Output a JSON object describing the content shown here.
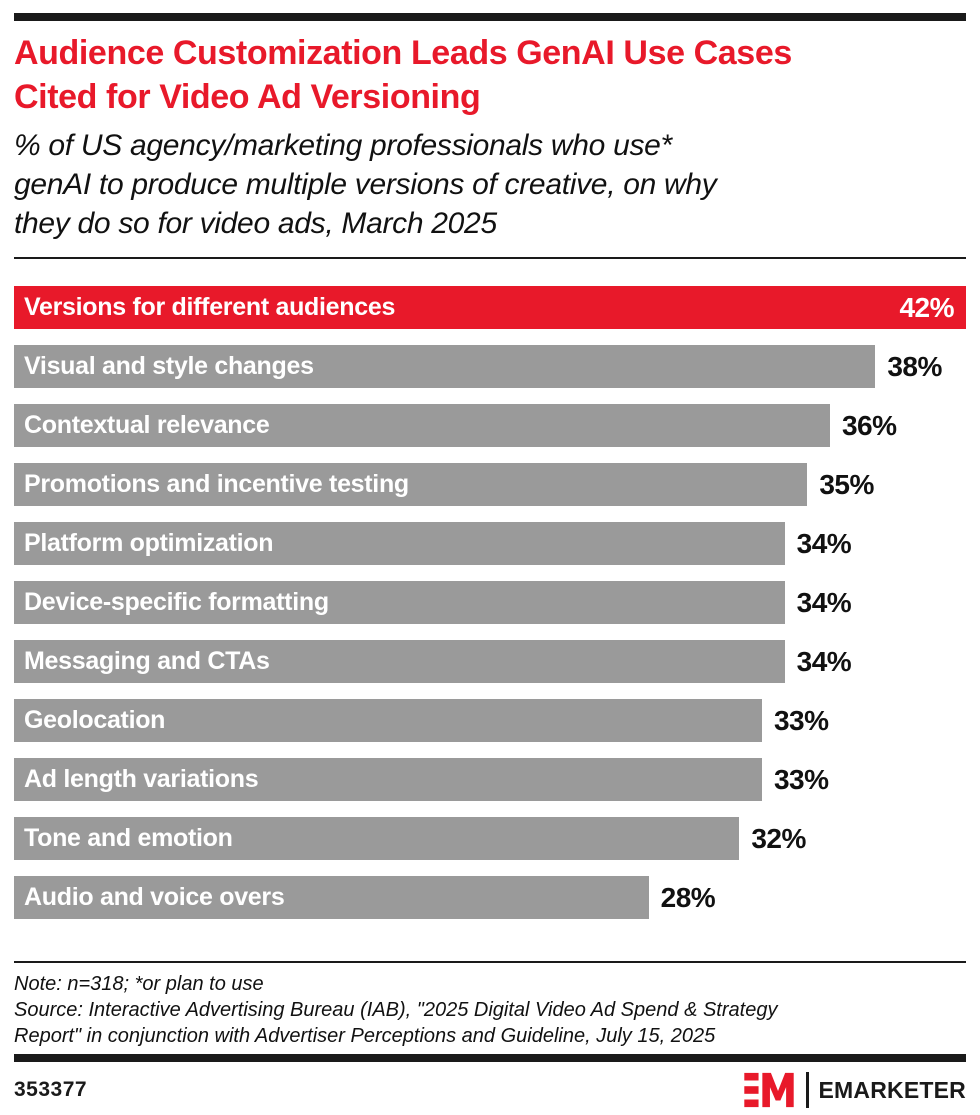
{
  "colors": {
    "accent_red": "#e8192a",
    "bar_gray": "#9a9a9a",
    "ink": "#1a1a1a"
  },
  "header": {
    "title_lines": [
      "Audience Customization Leads GenAI Use Cases",
      "Cited for Video Ad Versioning"
    ],
    "subtitle_lines": [
      "% of US agency/marketing professionals who use*",
      "genAI to produce multiple versions of creative, on why",
      "they do so for video ads, March 2025"
    ]
  },
  "chart_data": {
    "type": "bar",
    "orientation": "horizontal",
    "title": "Audience Customization Leads GenAI Use Cases Cited for Video Ad Versioning",
    "subtitle": "% of US agency/marketing professionals who use* genAI to produce multiple versions of creative, on why they do so for video ads, March 2025",
    "categories": [
      "Versions for different audiences",
      "Visual and style changes",
      "Contextual relevance",
      "Promotions and incentive testing",
      "Platform optimization",
      "Device-specific formatting",
      "Messaging and CTAs",
      "Geolocation",
      "Ad length variations",
      "Tone and emotion",
      "Audio and voice overs"
    ],
    "values": [
      42,
      38,
      36,
      35,
      34,
      34,
      34,
      33,
      33,
      32,
      28
    ],
    "value_suffix": "%",
    "max_value": 42,
    "highlight_index": 0,
    "xlabel": "",
    "ylabel": "",
    "grid": false,
    "legend": false
  },
  "footer": {
    "note": "Note: n=318; *or plan to use",
    "source_lines": [
      "Source: Interactive Advertising Bureau (IAB), \"2025 Digital Video Ad Spend & Strategy",
      "Report\" in conjunction with Advertiser Perceptions and Guideline, July 15, 2025"
    ],
    "chart_id": "353377",
    "brand_wordmark": "EMARKETER"
  }
}
